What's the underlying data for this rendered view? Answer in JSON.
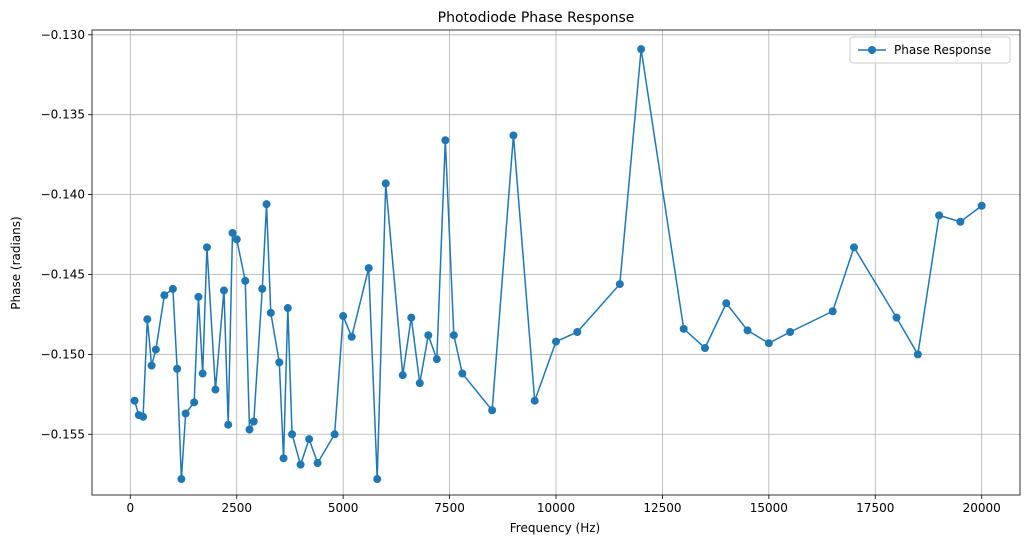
{
  "chart_data": {
    "type": "line",
    "title": "Photodiode Phase Response",
    "xlabel": "Frequency (Hz)",
    "ylabel": "Phase (radians)",
    "xlim": [
      -900,
      20900
    ],
    "ylim": [
      -0.1588,
      -0.1297
    ],
    "x_ticks": [
      0,
      2500,
      5000,
      7500,
      10000,
      12500,
      15000,
      17500,
      20000
    ],
    "x_tick_labels": [
      "0",
      "2500",
      "5000",
      "7500",
      "10000",
      "12500",
      "15000",
      "17500",
      "20000"
    ],
    "y_ticks": [
      -0.155,
      -0.15,
      -0.145,
      -0.14,
      -0.135,
      -0.13
    ],
    "y_tick_labels": [
      "−0.155",
      "−0.150",
      "−0.145",
      "−0.140",
      "−0.135",
      "−0.130"
    ],
    "grid": true,
    "legend_position": "top-right",
    "color": "#1f77b4",
    "series": [
      {
        "name": "Phase Response",
        "x": [
          100,
          200,
          300,
          400,
          500,
          600,
          800,
          1000,
          1100,
          1200,
          1300,
          1500,
          1600,
          1700,
          1800,
          2000,
          2200,
          2300,
          2400,
          2500,
          2700,
          2800,
          2900,
          3100,
          3200,
          3300,
          3500,
          3600,
          3700,
          3800,
          4000,
          4200,
          4400,
          4800,
          5000,
          5200,
          5600,
          5800,
          6000,
          6400,
          6600,
          6800,
          7000,
          7200,
          7400,
          7600,
          7800,
          8500,
          9000,
          9500,
          10000,
          10500,
          11500,
          12000,
          13000,
          13500,
          14000,
          14500,
          15000,
          15500,
          16500,
          17000,
          18000,
          18500,
          19000,
          19500,
          20000
        ],
        "y": [
          -0.1529,
          -0.1538,
          -0.1539,
          -0.1478,
          -0.1507,
          -0.1497,
          -0.1463,
          -0.1459,
          -0.1509,
          -0.1578,
          -0.1537,
          -0.153,
          -0.1464,
          -0.1512,
          -0.1433,
          -0.1522,
          -0.146,
          -0.1544,
          -0.1424,
          -0.1428,
          -0.1454,
          -0.1547,
          -0.1542,
          -0.1459,
          -0.1406,
          -0.1474,
          -0.1505,
          -0.1565,
          -0.1471,
          -0.155,
          -0.1569,
          -0.1553,
          -0.1568,
          -0.155,
          -0.1476,
          -0.1489,
          -0.1446,
          -0.1578,
          -0.1393,
          -0.1513,
          -0.1477,
          -0.1518,
          -0.1488,
          -0.1503,
          -0.1366,
          -0.1488,
          -0.1512,
          -0.1535,
          -0.1363,
          -0.1529,
          -0.1492,
          -0.1486,
          -0.1456,
          -0.1309,
          -0.1484,
          -0.1496,
          -0.1468,
          -0.1485,
          -0.1493,
          -0.1486,
          -0.1473,
          -0.1433,
          -0.1477,
          -0.15,
          -0.1413,
          -0.1417,
          -0.1407
        ]
      }
    ]
  }
}
